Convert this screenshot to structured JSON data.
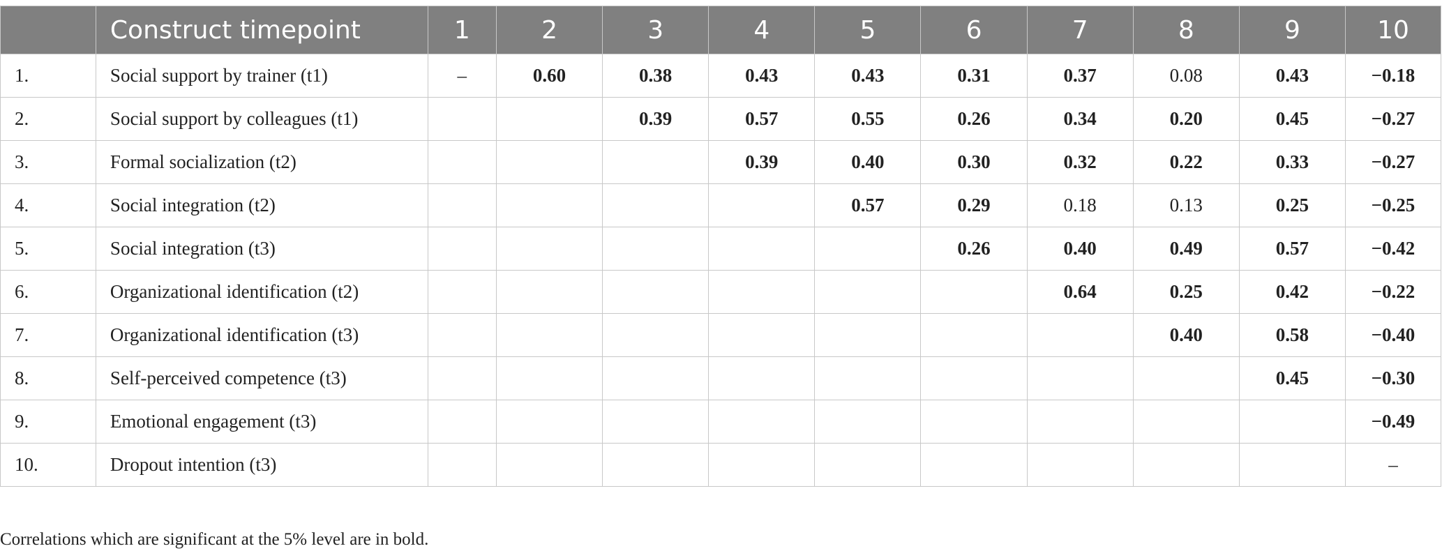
{
  "table": {
    "header": [
      "",
      "Construct timepoint",
      "1",
      "2",
      "3",
      "4",
      "5",
      "6",
      "7",
      "8",
      "9",
      "10"
    ],
    "rows": [
      {
        "num": "1.",
        "label": "Social support by trainer (t1)",
        "cells": [
          "–",
          "0.60",
          "0.38",
          "0.43",
          "0.43",
          "0.31",
          "0.37",
          "0.08",
          "0.43",
          "−0.18"
        ],
        "bold": [
          false,
          true,
          true,
          true,
          true,
          true,
          true,
          false,
          true,
          true
        ]
      },
      {
        "num": "2.",
        "label": "Social support by colleagues (t1)",
        "cells": [
          "",
          "",
          "0.39",
          "0.57",
          "0.55",
          "0.26",
          "0.34",
          "0.20",
          "0.45",
          "−0.27"
        ],
        "bold": [
          false,
          false,
          true,
          true,
          true,
          true,
          true,
          true,
          true,
          true
        ]
      },
      {
        "num": "3.",
        "label": "Formal socialization (t2)",
        "cells": [
          "",
          "",
          "",
          "0.39",
          "0.40",
          "0.30",
          "0.32",
          "0.22",
          "0.33",
          "−0.27"
        ],
        "bold": [
          false,
          false,
          false,
          true,
          true,
          true,
          true,
          true,
          true,
          true
        ]
      },
      {
        "num": "4.",
        "label": "Social integration (t2)",
        "cells": [
          "",
          "",
          "",
          "",
          "0.57",
          "0.29",
          "0.18",
          "0.13",
          "0.25",
          "−0.25"
        ],
        "bold": [
          false,
          false,
          false,
          false,
          true,
          true,
          false,
          false,
          true,
          true
        ]
      },
      {
        "num": "5.",
        "label": "Social integration (t3)",
        "cells": [
          "",
          "",
          "",
          "",
          "",
          "0.26",
          "0.40",
          "0.49",
          "0.57",
          "−0.42"
        ],
        "bold": [
          false,
          false,
          false,
          false,
          false,
          true,
          true,
          true,
          true,
          true
        ]
      },
      {
        "num": "6.",
        "label": "Organizational identification (t2)",
        "cells": [
          "",
          "",
          "",
          "",
          "",
          "",
          "0.64",
          "0.25",
          "0.42",
          "−0.22"
        ],
        "bold": [
          false,
          false,
          false,
          false,
          false,
          false,
          true,
          true,
          true,
          true
        ]
      },
      {
        "num": "7.",
        "label": "Organizational identification (t3)",
        "cells": [
          "",
          "",
          "",
          "",
          "",
          "",
          "",
          "0.40",
          "0.58",
          "−0.40"
        ],
        "bold": [
          false,
          false,
          false,
          false,
          false,
          false,
          false,
          true,
          true,
          true
        ]
      },
      {
        "num": "8.",
        "label": "Self-perceived competence (t3)",
        "cells": [
          "",
          "",
          "",
          "",
          "",
          "",
          "",
          "",
          "0.45",
          "−0.30"
        ],
        "bold": [
          false,
          false,
          false,
          false,
          false,
          false,
          false,
          false,
          true,
          true
        ]
      },
      {
        "num": "9.",
        "label": "Emotional engagement (t3)",
        "cells": [
          "",
          "",
          "",
          "",
          "",
          "",
          "",
          "",
          "",
          "−0.49"
        ],
        "bold": [
          false,
          false,
          false,
          false,
          false,
          false,
          false,
          false,
          false,
          true
        ]
      },
      {
        "num": "10.",
        "label": "Dropout intention (t3)",
        "cells": [
          "",
          "",
          "",
          "",
          "",
          "",
          "",
          "",
          "",
          "–"
        ],
        "bold": [
          false,
          false,
          false,
          false,
          false,
          false,
          false,
          false,
          false,
          false
        ]
      }
    ]
  },
  "note": "Correlations which are significant at the 5% level are in bold.",
  "colors": {
    "header_bg": "#808080",
    "header_text": "#ffffff",
    "grid": "#c8c8c8",
    "body_text": "#222222"
  }
}
